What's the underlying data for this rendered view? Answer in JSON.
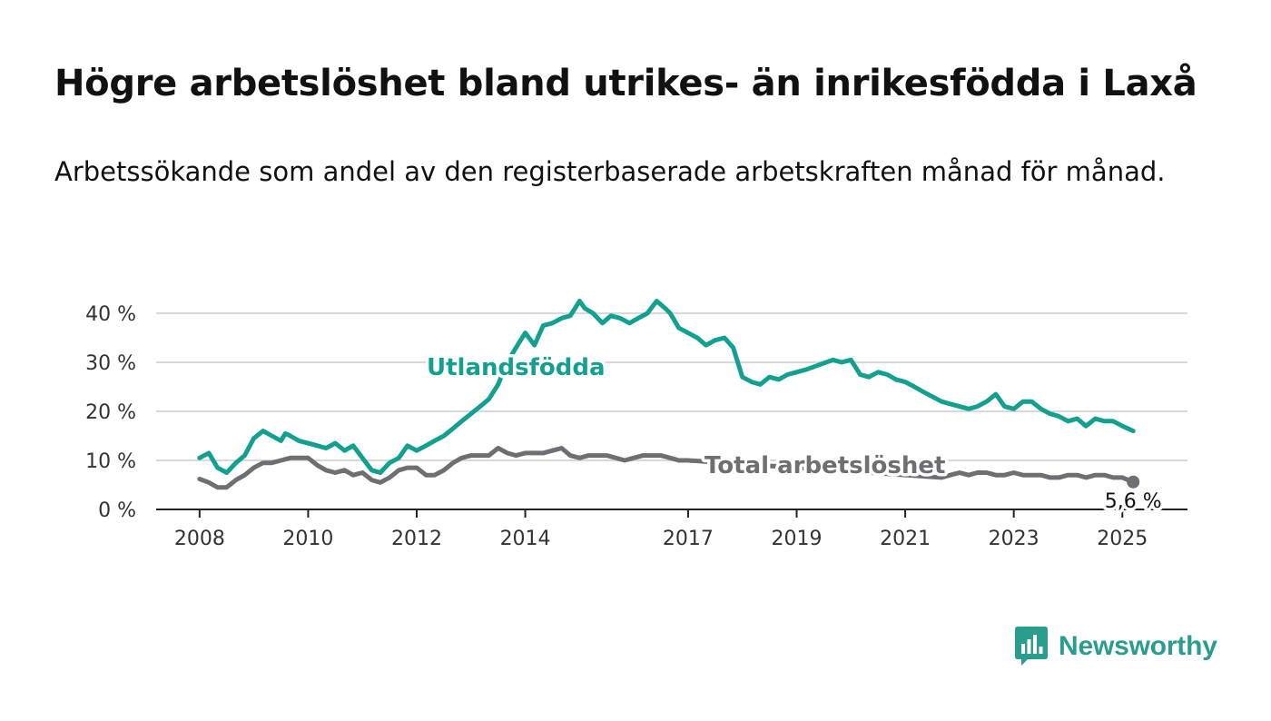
{
  "title": "Högre arbetslöshet bland utrikes- än inrikesfödda i Laxå",
  "subtitle": "Arbetssökande som andel av den registerbaserade arbetskraften månad för månad.",
  "brand": {
    "name": "Newsworthy",
    "icon": "bar-chart-speech-bubble-icon"
  },
  "colors": {
    "foreign_born": "#14a090",
    "total": "#6e6e73",
    "grid": "#d9d9d9",
    "axis": "#222222"
  },
  "chart_data": {
    "type": "line",
    "x_unit": "year",
    "xlim": [
      2007.2,
      2026.2
    ],
    "ylim": [
      0,
      40
    ],
    "y_tick_values": [
      0,
      10,
      20,
      30,
      40
    ],
    "y_tick_labels": [
      "0 %",
      "10 %",
      "20 %",
      "30 %",
      "40 %"
    ],
    "x_tick_values": [
      2008,
      2010,
      2012,
      2014,
      2017,
      2019,
      2021,
      2023,
      2025
    ],
    "x_tick_labels": [
      "2008",
      "2010",
      "2012",
      "2014",
      "2017",
      "2019",
      "2021",
      "2023",
      "2025"
    ],
    "grid": true,
    "series": [
      {
        "name": "Utlandsfödda",
        "color": "#14a090",
        "x": [
          2008.0,
          2008.17,
          2008.33,
          2008.5,
          2008.67,
          2008.83,
          2009.0,
          2009.17,
          2009.33,
          2009.5,
          2009.58,
          2009.67,
          2009.83,
          2010.0,
          2010.17,
          2010.33,
          2010.5,
          2010.67,
          2010.83,
          2011.0,
          2011.17,
          2011.33,
          2011.5,
          2011.67,
          2011.83,
          2012.0,
          2012.17,
          2012.33,
          2012.5,
          2012.67,
          2012.83,
          2013.0,
          2013.17,
          2013.33,
          2013.5,
          2013.67,
          2013.83,
          2014.0,
          2014.17,
          2014.33,
          2014.5,
          2014.67,
          2014.83,
          2015.0,
          2015.1,
          2015.25,
          2015.42,
          2015.58,
          2015.75,
          2015.92,
          2016.08,
          2016.25,
          2016.42,
          2016.58,
          2016.67,
          2016.83,
          2017.0,
          2017.17,
          2017.33,
          2017.5,
          2017.67,
          2017.83,
          2018.0,
          2018.17,
          2018.33,
          2018.5,
          2018.67,
          2018.83,
          2019.0,
          2019.17,
          2019.42,
          2019.67,
          2019.83,
          2020.0,
          2020.17,
          2020.33,
          2020.5,
          2020.67,
          2020.83,
          2021.0,
          2021.17,
          2021.33,
          2021.5,
          2021.67,
          2021.83,
          2022.0,
          2022.17,
          2022.33,
          2022.5,
          2022.67,
          2022.83,
          2023.0,
          2023.17,
          2023.33,
          2023.5,
          2023.67,
          2023.83,
          2024.0,
          2024.17,
          2024.33,
          2024.5,
          2024.67,
          2024.83,
          2025.0,
          2025.2
        ],
        "y": [
          10.5,
          11.5,
          8.5,
          7.5,
          9.5,
          11,
          14.5,
          16,
          15,
          14,
          15.5,
          15,
          14,
          13.5,
          13,
          12.5,
          13.5,
          12,
          13,
          10.5,
          8,
          7.5,
          9.5,
          10.5,
          13,
          12,
          13,
          14,
          15,
          16.5,
          18,
          19.5,
          21,
          22.5,
          25.5,
          30,
          33,
          36,
          33.5,
          37.5,
          38,
          39,
          39.5,
          42.5,
          41,
          40,
          38,
          39.5,
          39,
          38,
          39,
          40,
          42.5,
          41,
          40,
          37,
          36,
          35,
          33.5,
          34.5,
          35,
          33,
          27,
          26,
          25.5,
          27,
          26.5,
          27.5,
          28,
          28.5,
          29.5,
          30.5,
          30,
          30.5,
          27.5,
          27,
          28,
          27.5,
          26.5,
          26,
          25,
          24,
          23,
          22,
          21.5,
          21,
          20.5,
          21,
          22,
          23.5,
          21,
          20.5,
          22,
          22,
          20.5,
          19.5,
          19,
          18,
          18.5,
          17,
          18.5,
          18,
          18,
          17,
          16
        ]
      },
      {
        "name": "Total arbetslöshet",
        "color": "#6e6e73",
        "x": [
          2008.0,
          2008.17,
          2008.33,
          2008.5,
          2008.67,
          2008.83,
          2009.0,
          2009.17,
          2009.33,
          2009.5,
          2009.67,
          2009.83,
          2010.0,
          2010.17,
          2010.33,
          2010.5,
          2010.67,
          2010.83,
          2011.0,
          2011.17,
          2011.33,
          2011.5,
          2011.67,
          2011.83,
          2012.0,
          2012.17,
          2012.33,
          2012.5,
          2012.67,
          2012.83,
          2013.0,
          2013.17,
          2013.33,
          2013.5,
          2013.67,
          2013.83,
          2014.0,
          2014.17,
          2014.33,
          2014.5,
          2014.67,
          2014.83,
          2015.0,
          2015.17,
          2015.33,
          2015.5,
          2015.67,
          2015.83,
          2016.0,
          2016.17,
          2016.33,
          2016.5,
          2016.67,
          2016.83,
          2017.0,
          2021.67,
          2021.83,
          2022.0,
          2022.17,
          2022.33,
          2022.5,
          2022.67,
          2022.83,
          2023.0,
          2023.17,
          2023.33,
          2023.5,
          2023.67,
          2023.83,
          2024.0,
          2024.17,
          2024.33,
          2024.5,
          2024.67,
          2024.83,
          2025.0,
          2025.2
        ],
        "y": [
          6.2,
          5.5,
          4.5,
          4.5,
          6,
          7,
          8.5,
          9.5,
          9.5,
          10,
          10.5,
          10.5,
          10.5,
          9,
          8,
          7.5,
          8,
          7,
          7.5,
          6,
          5.5,
          6.5,
          8,
          8.5,
          8.5,
          7,
          7,
          8,
          9.5,
          10.5,
          11,
          11,
          11,
          12.5,
          11.5,
          11,
          11.5,
          11.5,
          11.5,
          12,
          12.5,
          11,
          10.5,
          11,
          11,
          11,
          10.5,
          10,
          10.5,
          11,
          11,
          11,
          10.5,
          10,
          10,
          6.5,
          7,
          7.5,
          7,
          7.5,
          7.5,
          7,
          7,
          7.5,
          7,
          7,
          7,
          6.5,
          6.5,
          7,
          7,
          6.5,
          7,
          7,
          6.5,
          6.5,
          5.6
        ]
      }
    ],
    "annotations": [
      {
        "text": "Utlandsfödda",
        "series": "Utlandsfödda"
      },
      {
        "text": "Total arbetslöshet",
        "series": "Total arbetslöshet"
      },
      {
        "text": "5,6 %",
        "x": 2025.2,
        "y": 5.6,
        "series": "Total arbetslöshet"
      }
    ]
  }
}
